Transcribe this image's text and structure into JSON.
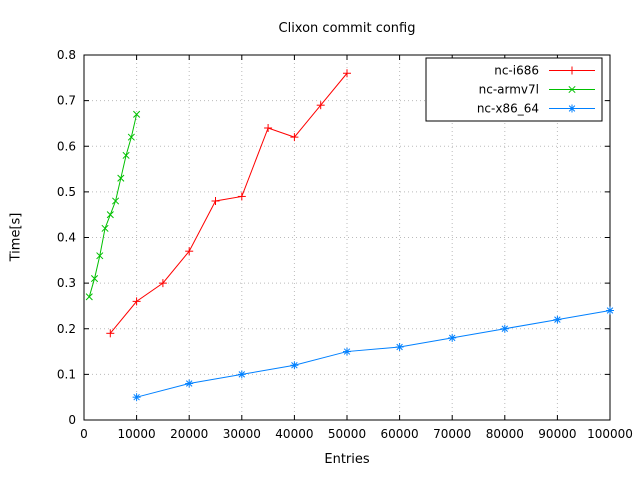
{
  "chart_data": {
    "type": "line",
    "title": "Clixon commit config",
    "xlabel": "Entries",
    "ylabel": "Time[s]",
    "xlim": [
      0,
      100000
    ],
    "ylim": [
      0,
      0.8
    ],
    "xticks": [
      0,
      10000,
      20000,
      30000,
      40000,
      50000,
      60000,
      70000,
      80000,
      90000,
      100000
    ],
    "xtick_labels": [
      "0",
      "10000",
      "20000",
      "30000",
      "40000",
      "50000",
      "60000",
      "70000",
      "80000",
      "90000",
      "100000"
    ],
    "yticks": [
      0,
      0.1,
      0.2,
      0.3,
      0.4,
      0.5,
      0.6,
      0.7,
      0.8
    ],
    "ytick_labels": [
      "0",
      "0.1",
      "0.2",
      "0.3",
      "0.4",
      "0.5",
      "0.6",
      "0.7",
      "0.8"
    ],
    "grid": true,
    "legend_position": "top-right",
    "colors": {
      "background": "#ffffff",
      "axis": "#000000",
      "grid": "#bbbbbb",
      "text": "#000000"
    },
    "series": [
      {
        "name": "nc-i686",
        "color": "#ff0000",
        "marker": "plus",
        "x": [
          5000,
          10000,
          15000,
          20000,
          25000,
          30000,
          35000,
          40000,
          45000,
          50000
        ],
        "y": [
          0.19,
          0.26,
          0.3,
          0.37,
          0.48,
          0.49,
          0.64,
          0.62,
          0.69,
          0.76
        ]
      },
      {
        "name": "nc-armv7l",
        "color": "#00c000",
        "marker": "x",
        "x": [
          1000,
          2000,
          3000,
          4000,
          5000,
          6000,
          7000,
          8000,
          9000,
          10000
        ],
        "y": [
          0.27,
          0.31,
          0.36,
          0.42,
          0.45,
          0.48,
          0.53,
          0.58,
          0.62,
          0.67
        ]
      },
      {
        "name": "nc-x86_64",
        "color": "#0080ff",
        "marker": "asterisk",
        "x": [
          10000,
          20000,
          30000,
          40000,
          50000,
          60000,
          70000,
          80000,
          90000,
          100000
        ],
        "y": [
          0.05,
          0.08,
          0.1,
          0.12,
          0.15,
          0.16,
          0.18,
          0.2,
          0.22,
          0.24
        ]
      }
    ]
  }
}
